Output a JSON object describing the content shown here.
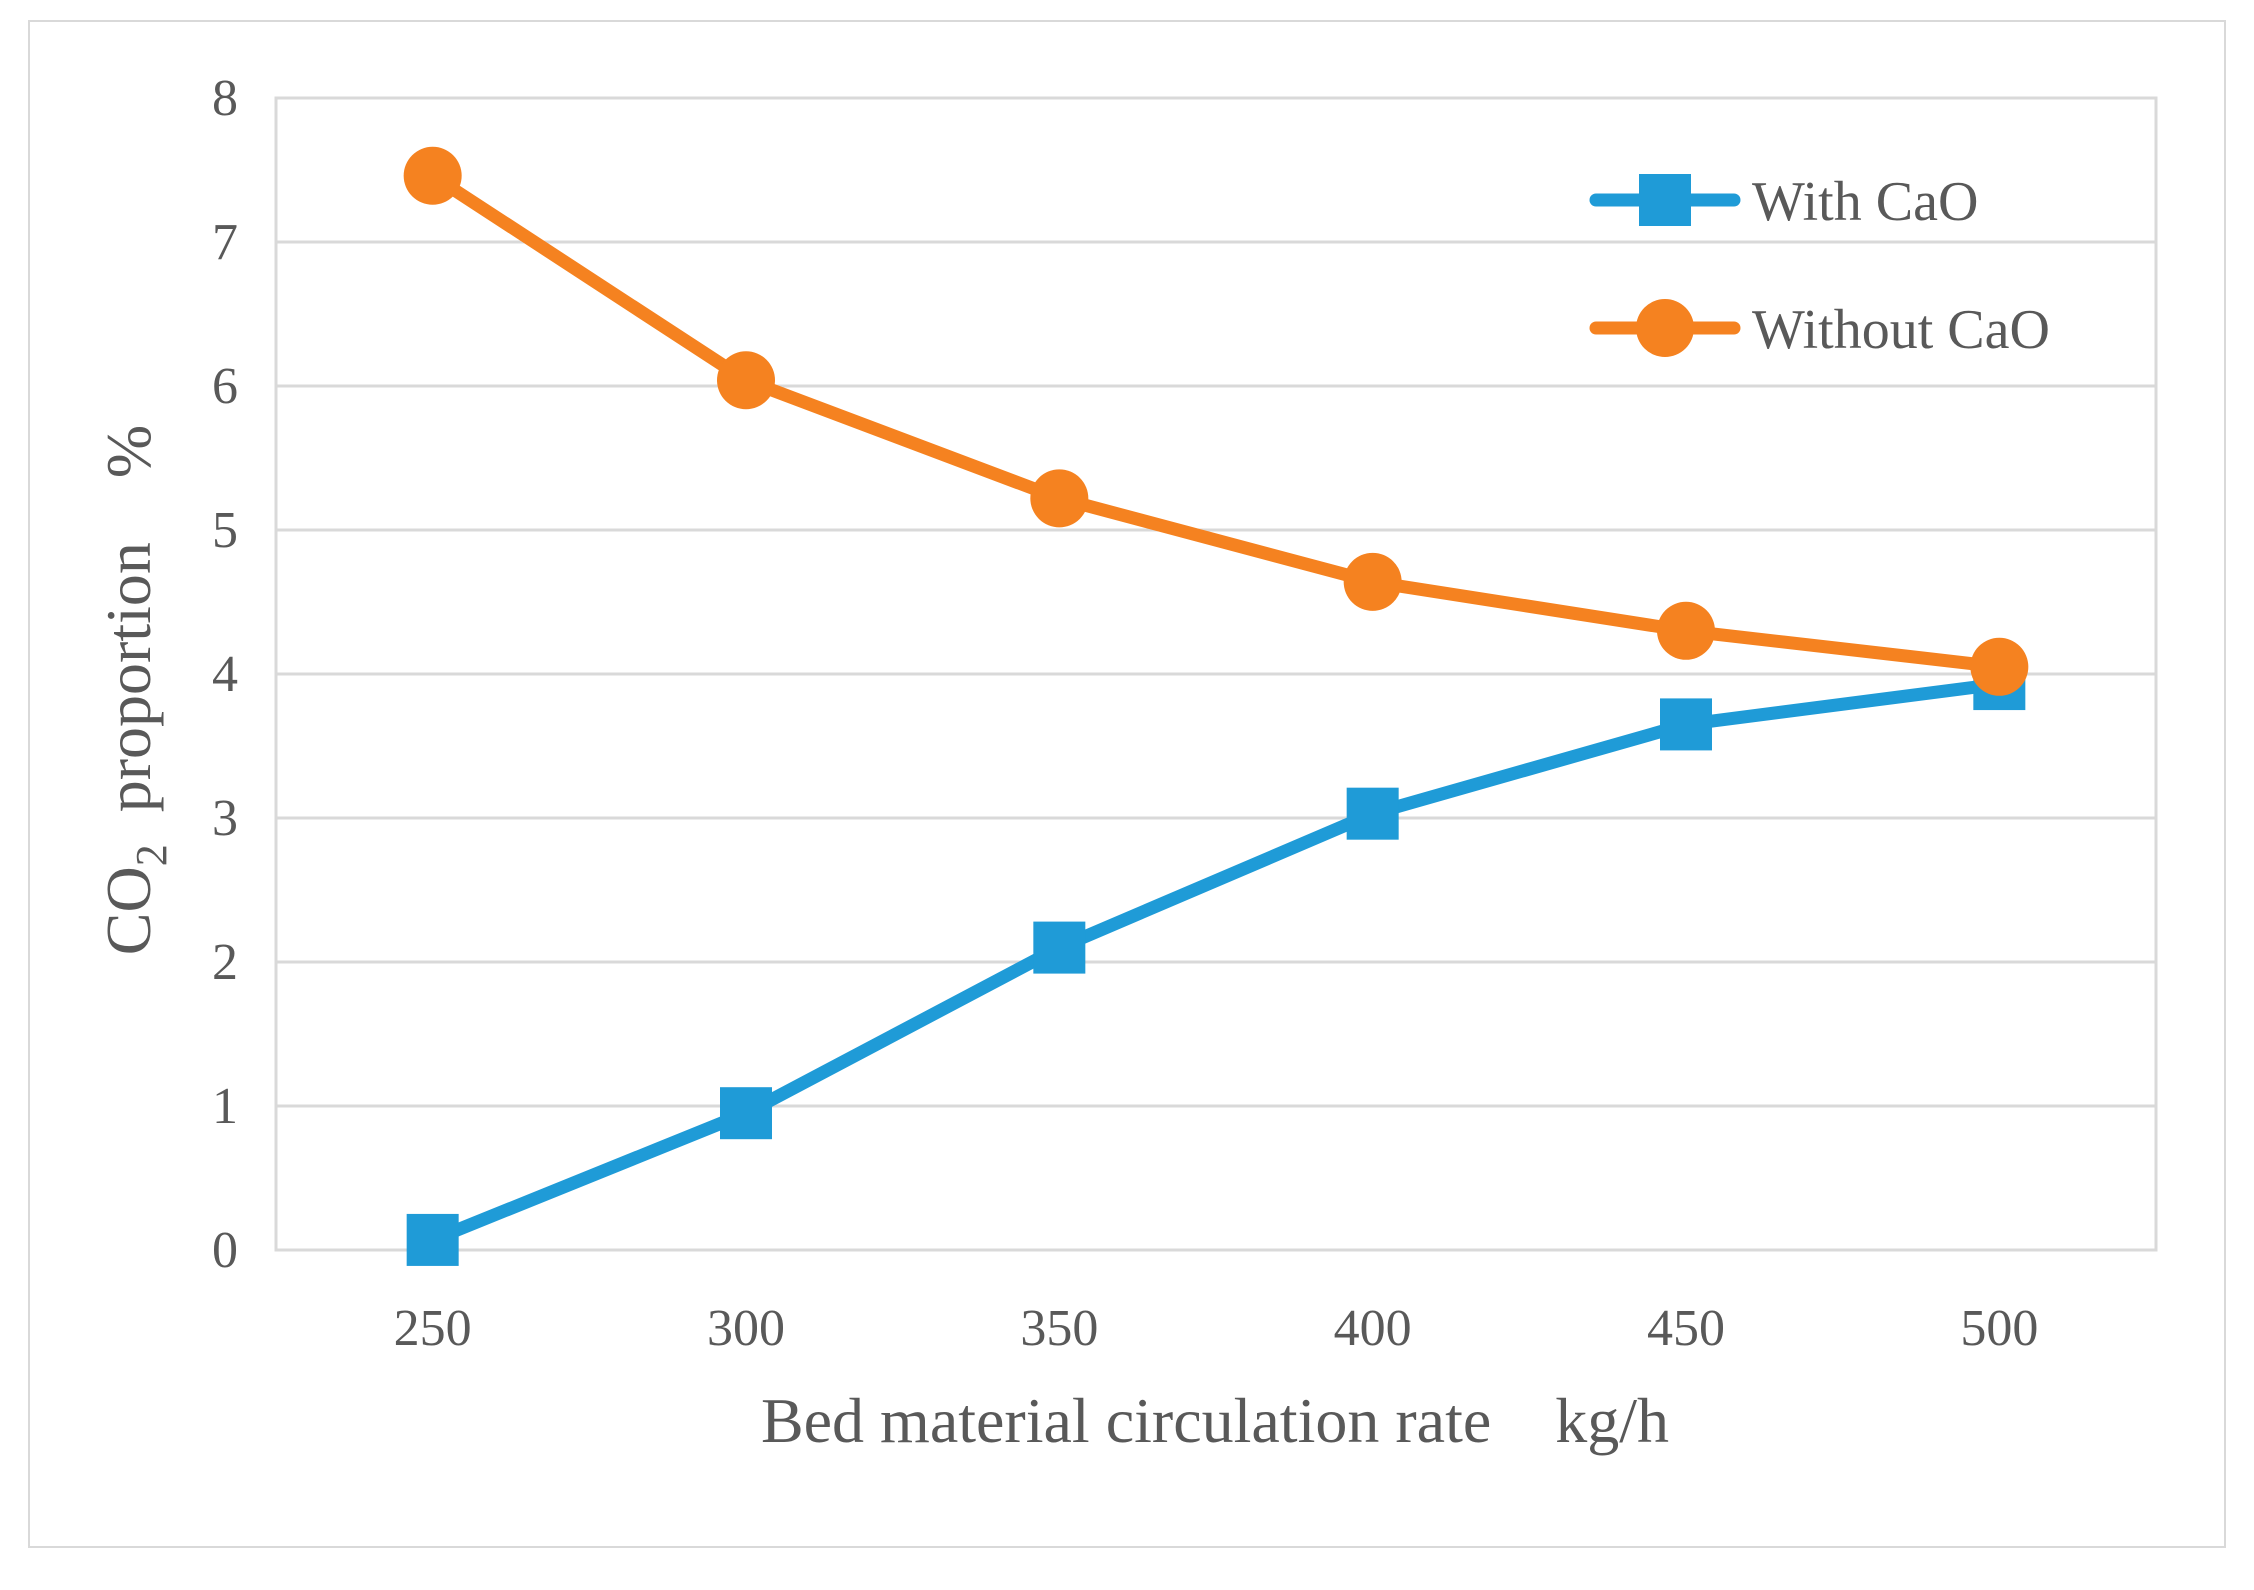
{
  "chart_data": {
    "type": "line",
    "title": "",
    "categories": [
      "250",
      "300",
      "350",
      "400",
      "450",
      "500"
    ],
    "series": [
      {
        "name": "With CaO",
        "color": "#1f9bd7",
        "marker": "square",
        "values": [
          0.07,
          0.95,
          2.1,
          3.03,
          3.65,
          3.93
        ]
      },
      {
        "name": "Without CaO",
        "color": "#f58220",
        "marker": "circle",
        "values": [
          7.46,
          6.04,
          5.22,
          4.64,
          4.3,
          4.05
        ]
      }
    ],
    "yticks": [
      "0",
      "1",
      "2",
      "3",
      "4",
      "5",
      "6",
      "7",
      "8"
    ],
    "ylim": [
      0,
      8
    ],
    "xlabel": "Bed material circulation rate    kg/h",
    "ylabel": {
      "prefix": "CO",
      "subscript": "2",
      "suffix": "  proportion    %"
    },
    "grid": true,
    "legend_position": "top-right",
    "colors": {
      "grid": "#d9d9d9",
      "text": "#595959"
    }
  }
}
